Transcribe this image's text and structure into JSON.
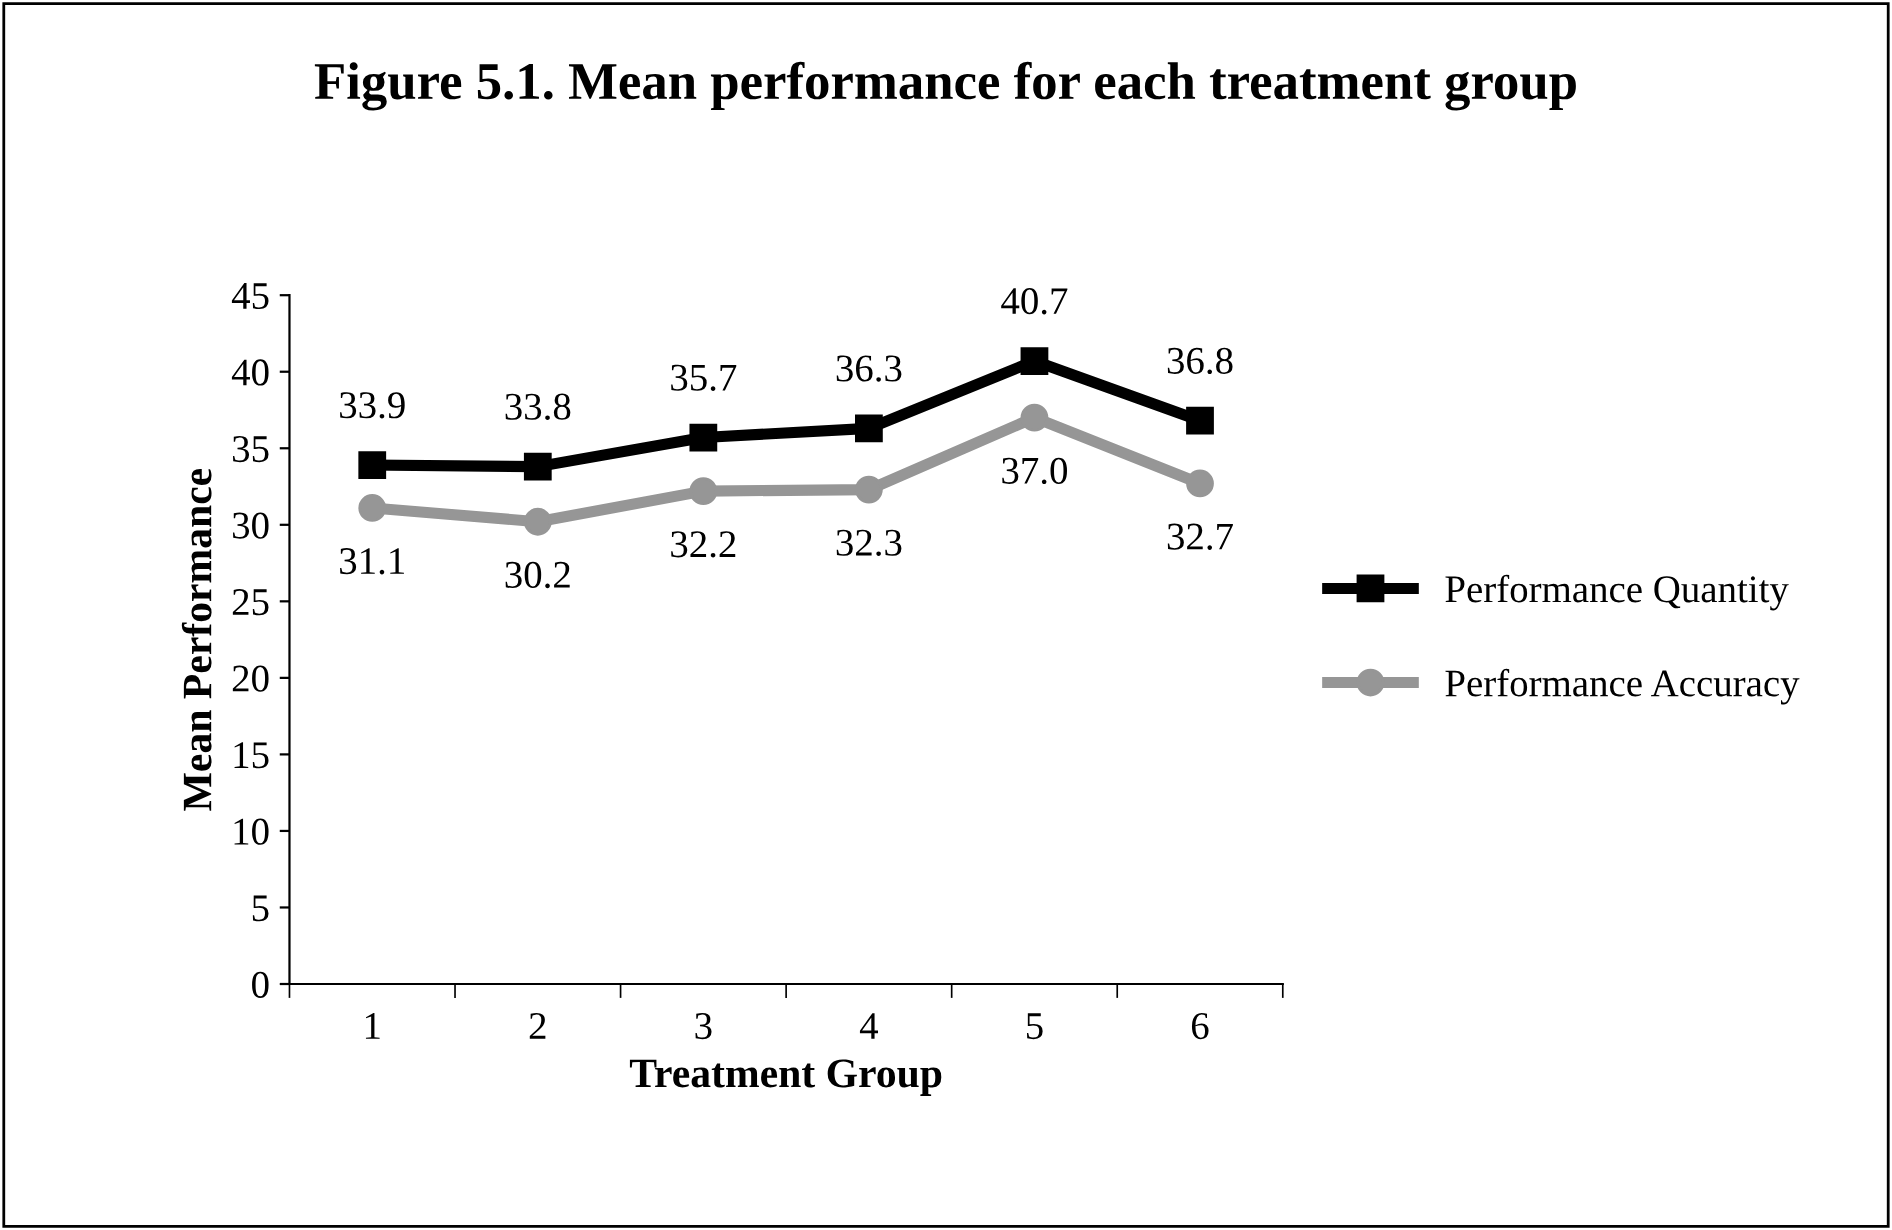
{
  "chart_data": {
    "type": "line",
    "title": "Figure 5.1. Mean performance for each treatment group",
    "xlabel": "Treatment Group",
    "ylabel": "Mean Performance",
    "categories": [
      "1",
      "2",
      "3",
      "4",
      "5",
      "6"
    ],
    "series": [
      {
        "name": "Performance Quantity",
        "color": "#000000",
        "marker": "square",
        "values": [
          33.9,
          33.8,
          35.7,
          36.3,
          40.7,
          36.8
        ],
        "value_labels": [
          "33.9",
          "33.8",
          "35.7",
          "36.3",
          "40.7",
          "36.8"
        ]
      },
      {
        "name": "Performance Accuracy",
        "color": "#969696",
        "marker": "circle",
        "values": [
          31.1,
          30.2,
          32.2,
          32.3,
          37.0,
          32.7
        ],
        "value_labels": [
          "31.1",
          "30.2",
          "32.2",
          "32.3",
          "37.0",
          "32.7"
        ]
      }
    ],
    "ylim": [
      0,
      45
    ],
    "yticks": [
      0,
      5,
      10,
      15,
      20,
      25,
      30,
      35,
      40,
      45
    ],
    "grid": false,
    "legend": "right",
    "line_style": "solid"
  }
}
